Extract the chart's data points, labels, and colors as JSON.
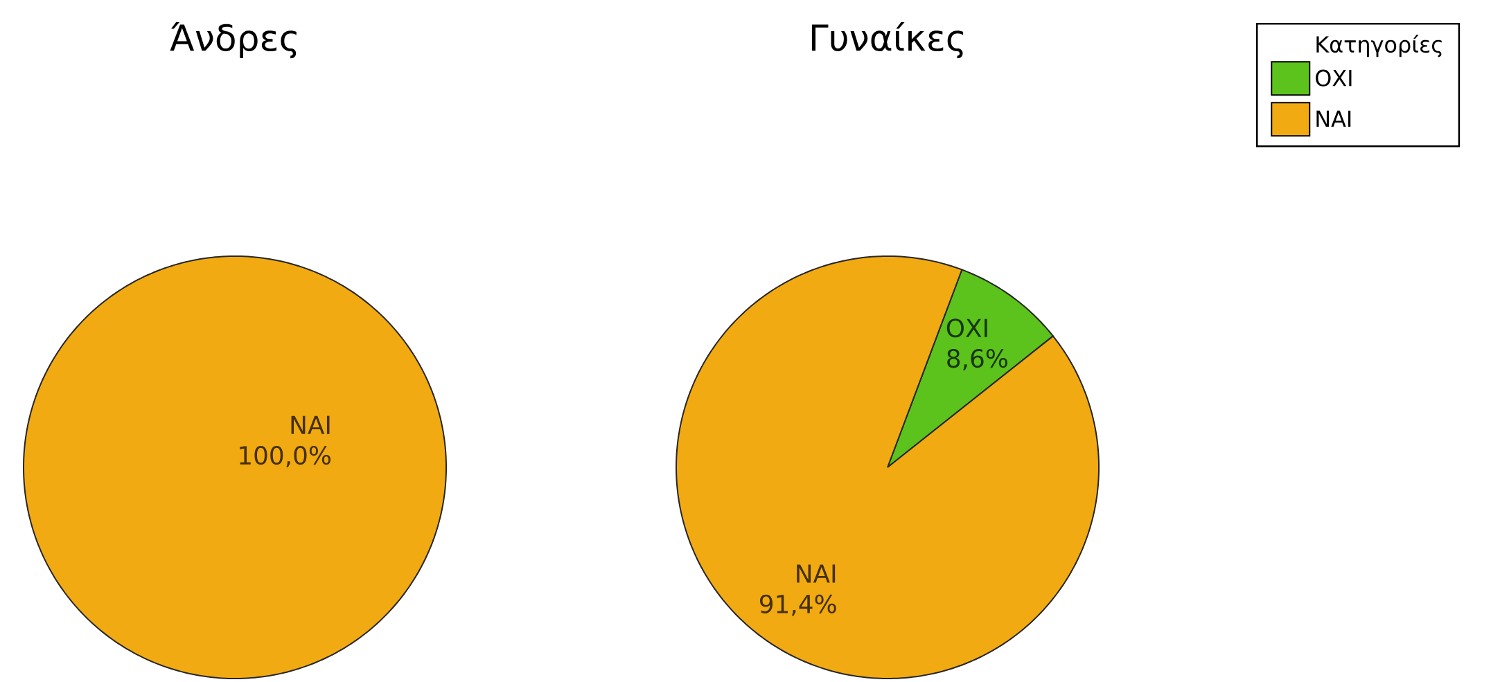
{
  "chart_data": [
    {
      "type": "pie",
      "title": "Άνδρες",
      "categories": [
        "ΝΑΙ"
      ],
      "values": [
        100
      ],
      "colors": [
        "#f2aa12"
      ],
      "value_labels": [
        "100,0%"
      ]
    },
    {
      "type": "pie",
      "title": "Γυναίκες",
      "categories": [
        "ΟΧΙ",
        "ΝΑΙ"
      ],
      "values": [
        8.6,
        91.4
      ],
      "colors": [
        "#5cc21c",
        "#f2aa12"
      ],
      "value_labels": [
        "8,6%",
        "91,4%"
      ],
      "legend": "top right",
      "legend_title": "Κατηγορίες"
    }
  ]
}
